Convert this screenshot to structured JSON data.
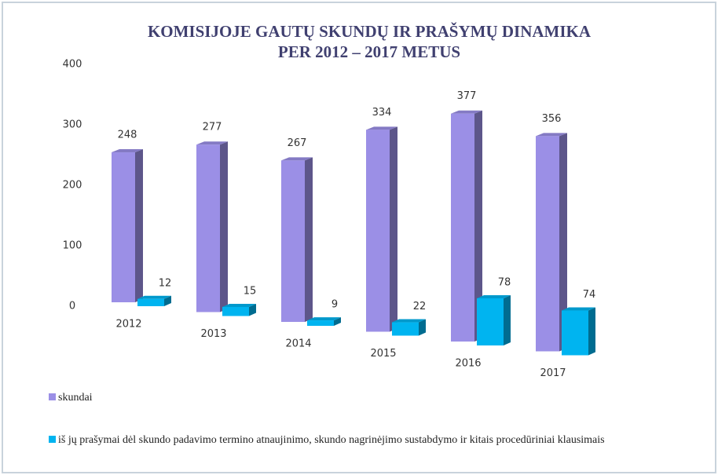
{
  "chart_data": {
    "type": "bar3d",
    "title": [
      "KOMISIJOJE GAUTŲ SKUNDŲ IR PRAŠYMŲ DINAMIKA",
      "PER 2012 – 2017 METUS"
    ],
    "categories": [
      "2012",
      "2013",
      "2014",
      "2015",
      "2016",
      "2017"
    ],
    "series": [
      {
        "name": "skundai",
        "color": "#9b8fe6",
        "values": [
          248,
          277,
          267,
          334,
          377,
          356
        ]
      },
      {
        "name": "iš jų prašymai dėl skundo padavimo termino atnaujinimo, skundo nagrinėjimo sustabdymo ir kitais procedūriniai klausimais",
        "color": "#00b4f0",
        "values": [
          12,
          15,
          9,
          22,
          78,
          74
        ]
      }
    ],
    "ylim": [
      0,
      400
    ],
    "yticks": [
      0,
      100,
      200,
      300,
      400
    ],
    "legend": "bottom-left"
  }
}
